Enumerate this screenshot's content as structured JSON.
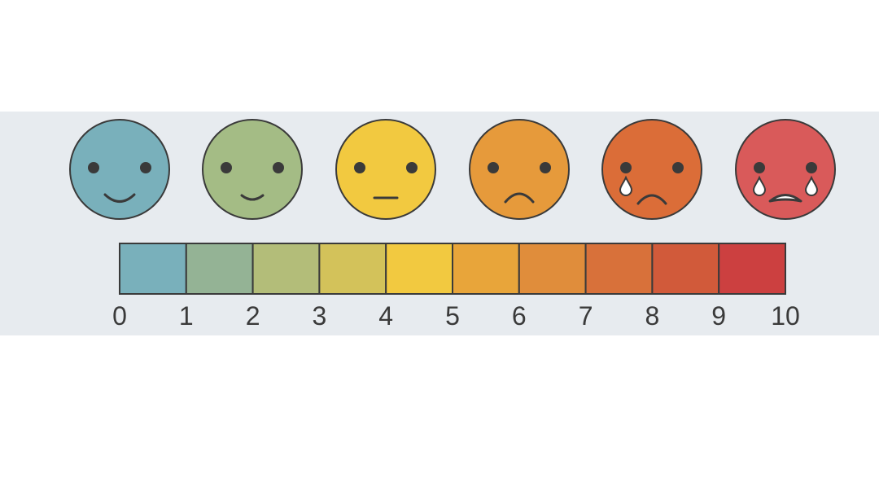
{
  "faces": [
    {
      "expression": "big-smile",
      "color": "#79b0bb"
    },
    {
      "expression": "small-smile",
      "color": "#a4bc85"
    },
    {
      "expression": "neutral",
      "color": "#f2c940"
    },
    {
      "expression": "frown",
      "color": "#e69a3b"
    },
    {
      "expression": "frown-tear",
      "color": "#db6d38"
    },
    {
      "expression": "cry-open-mouth",
      "color": "#d95a5a"
    }
  ],
  "scale": {
    "segment_colors": [
      "#79b0bb",
      "#94b395",
      "#b3bd79",
      "#d3c25a",
      "#f2c940",
      "#e8a53a",
      "#e08d3b",
      "#d8713a",
      "#d15a3a",
      "#cc4040"
    ],
    "ticks": [
      "0",
      "1",
      "2",
      "3",
      "4",
      "5",
      "6",
      "7",
      "8",
      "9",
      "10"
    ]
  },
  "colors": {
    "outline": "#3a3a3a",
    "panel_background": "#e7ebef"
  }
}
